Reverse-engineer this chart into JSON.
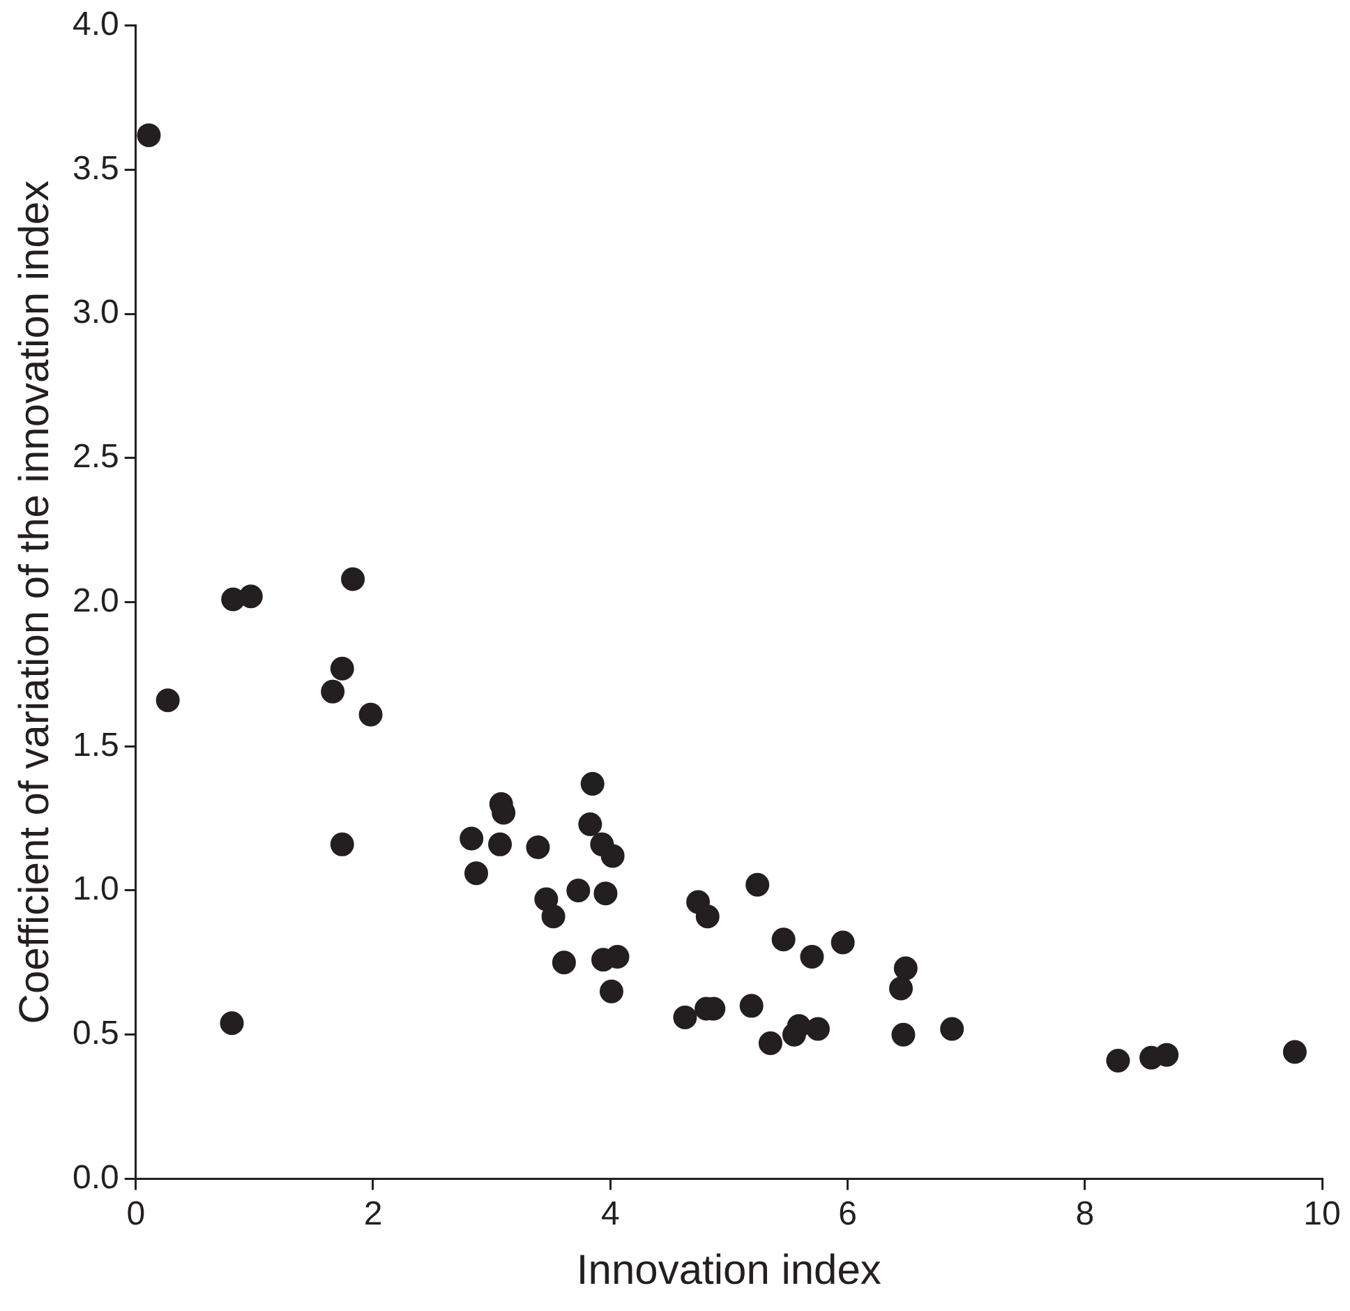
{
  "chart_data": {
    "type": "scatter",
    "xlabel": "Innovation index",
    "ylabel": "Coefficient of variation of the innovation index",
    "xlim": [
      0,
      10
    ],
    "xticks": [
      0,
      2,
      4,
      6,
      8,
      10
    ],
    "ylim": [
      0,
      4
    ],
    "yticks": [
      {
        "value": 0,
        "label": "0.0"
      },
      {
        "value": 0.5,
        "label": "0.5"
      },
      {
        "value": 1,
        "label": "1.0"
      },
      {
        "value": 1.5,
        "label": "1.5"
      },
      {
        "value": 2,
        "label": "2.0"
      },
      {
        "value": 2.5,
        "label": "2.5"
      },
      {
        "value": 3,
        "label": "3.0"
      },
      {
        "value": 3.5,
        "label": "3.5"
      },
      {
        "value": 4,
        "label": "4.0"
      }
    ],
    "grid": false,
    "marker": "circle",
    "legend": false,
    "series": [
      {
        "color": "#231f20",
        "x": [
          0.11,
          0.27,
          0.82,
          0.97,
          0.81,
          1.83,
          1.66,
          1.74,
          1.98,
          1.74,
          2.83,
          2.87,
          3.08,
          3.1,
          3.07,
          3.39,
          3.46,
          3.52,
          3.61,
          3.73,
          3.85,
          3.83,
          3.93,
          4.02,
          3.96,
          3.94,
          4.06,
          4.01,
          4.63,
          4.74,
          4.82,
          4.81,
          4.87,
          5.24,
          5.19,
          5.35,
          5.46,
          5.55,
          5.59,
          5.75,
          5.7,
          5.96,
          6.45,
          6.49,
          6.47,
          6.88,
          8.28,
          8.56,
          8.69,
          9.77
        ],
        "values": [
          3.62,
          1.66,
          2.01,
          2.02,
          0.54,
          2.08,
          1.69,
          1.77,
          1.61,
          1.16,
          1.18,
          1.06,
          1.3,
          1.27,
          1.16,
          1.15,
          0.97,
          0.91,
          0.75,
          1.0,
          1.37,
          1.23,
          1.16,
          1.12,
          0.99,
          0.76,
          0.77,
          0.65,
          0.56,
          0.96,
          0.91,
          0.59,
          0.59,
          1.02,
          0.6,
          0.47,
          0.83,
          0.5,
          0.53,
          0.52,
          0.77,
          0.82,
          0.66,
          0.73,
          0.5,
          0.52,
          0.41,
          0.42,
          0.43,
          0.44
        ]
      }
    ]
  }
}
